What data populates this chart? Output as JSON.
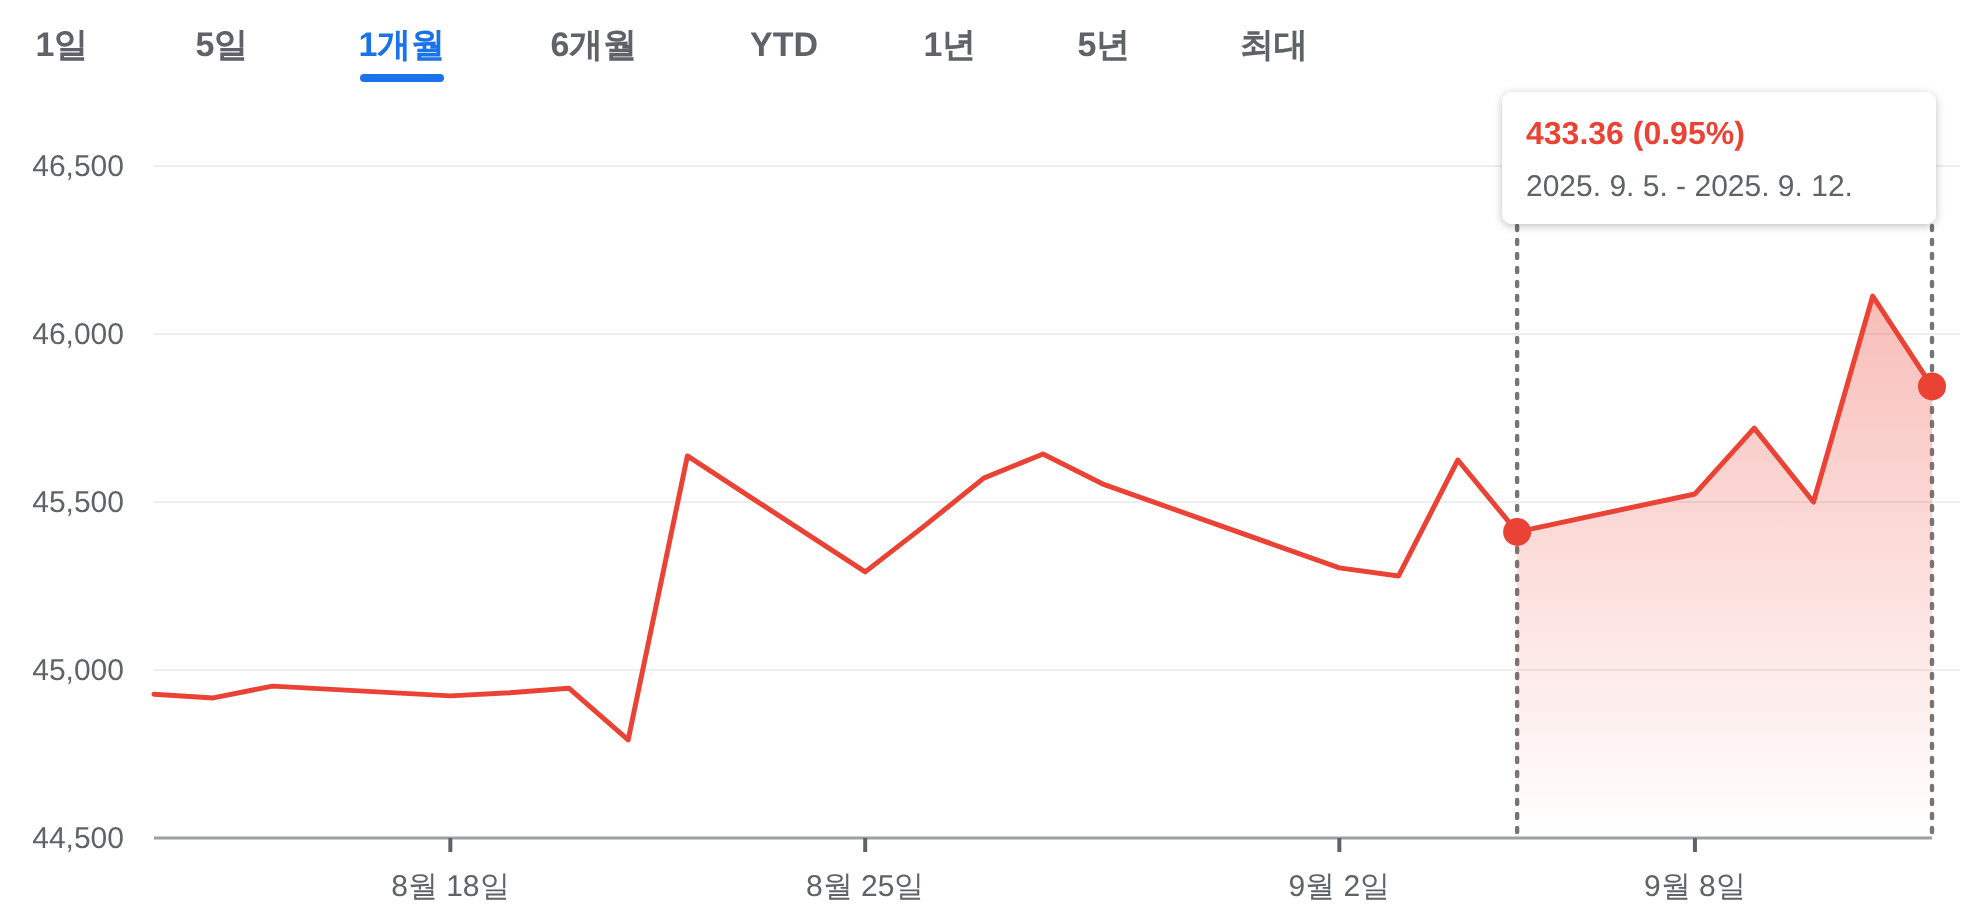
{
  "chart_data": {
    "type": "line",
    "x": [
      "--08-13",
      "--08-14",
      "--08-15",
      "--08-18",
      "--08-19",
      "--08-20",
      "--08-21",
      "--08-22",
      "--08-25",
      "--08-26",
      "--08-27",
      "--08-28",
      "--08-29",
      "--09-02",
      "--09-03",
      "--09-04",
      "--09-05",
      "--09-08",
      "--09-09",
      "--09-10",
      "--09-11",
      "--09-12"
    ],
    "series": [
      {
        "type": "area",
        "color": "#ea4335",
        "x": [
          "--09-05",
          "--09-08",
          "--09-09",
          "--09-10",
          "--09-11",
          "--09-12"
        ],
        "values": [
          45411,
          45524,
          45720,
          45500,
          46113,
          45844
        ]
      },
      {
        "color": "#ea4335",
        "values": [
          44928,
          44917,
          44952,
          44923,
          44932,
          44946,
          44792,
          45637,
          45292,
          45429,
          45571,
          45643,
          45554,
          45304,
          45280,
          45625,
          45411,
          45524,
          45720,
          45500,
          46113,
          45844
        ]
      },
      {
        "type": "scatter",
        "color": "#ea4335",
        "x": [
          "--09-05",
          "--09-12"
        ],
        "values": [
          45411,
          45844
        ]
      }
    ],
    "xlim": [
      "--08-13",
      "--09-12"
    ],
    "xticks": [
      {
        "value": "--08-18",
        "label": "8월 18일"
      },
      {
        "value": "--08-25",
        "label": "8월 25일"
      },
      {
        "value": "--09-02",
        "label": "9월 2일"
      },
      {
        "value": "--09-08",
        "label": "9월 8일"
      }
    ],
    "ylim": [
      44500,
      46500
    ],
    "yticks": [
      {
        "value": 44500,
        "label": "44,500"
      },
      {
        "value": 45000,
        "label": "45,000"
      },
      {
        "value": 45500,
        "label": "45,500"
      },
      {
        "value": 46000,
        "label": "46,000"
      },
      {
        "value": 46500,
        "label": "46,500"
      }
    ],
    "grid": "y",
    "ref_lines": [
      {
        "axis": "x",
        "value": "--09-05",
        "line_style": "dotted",
        "color": "#757575"
      },
      {
        "axis": "x",
        "value": "--09-12",
        "line_style": "dotted",
        "color": "#757575"
      }
    ],
    "annotations": [
      "433.36 (0.95%)",
      "2025. 9. 5. - 2025. 9. 12.",
      "1일",
      "5일",
      "1개월",
      "6개월",
      "YTD",
      "1년",
      "5년",
      "최대"
    ]
  }
}
